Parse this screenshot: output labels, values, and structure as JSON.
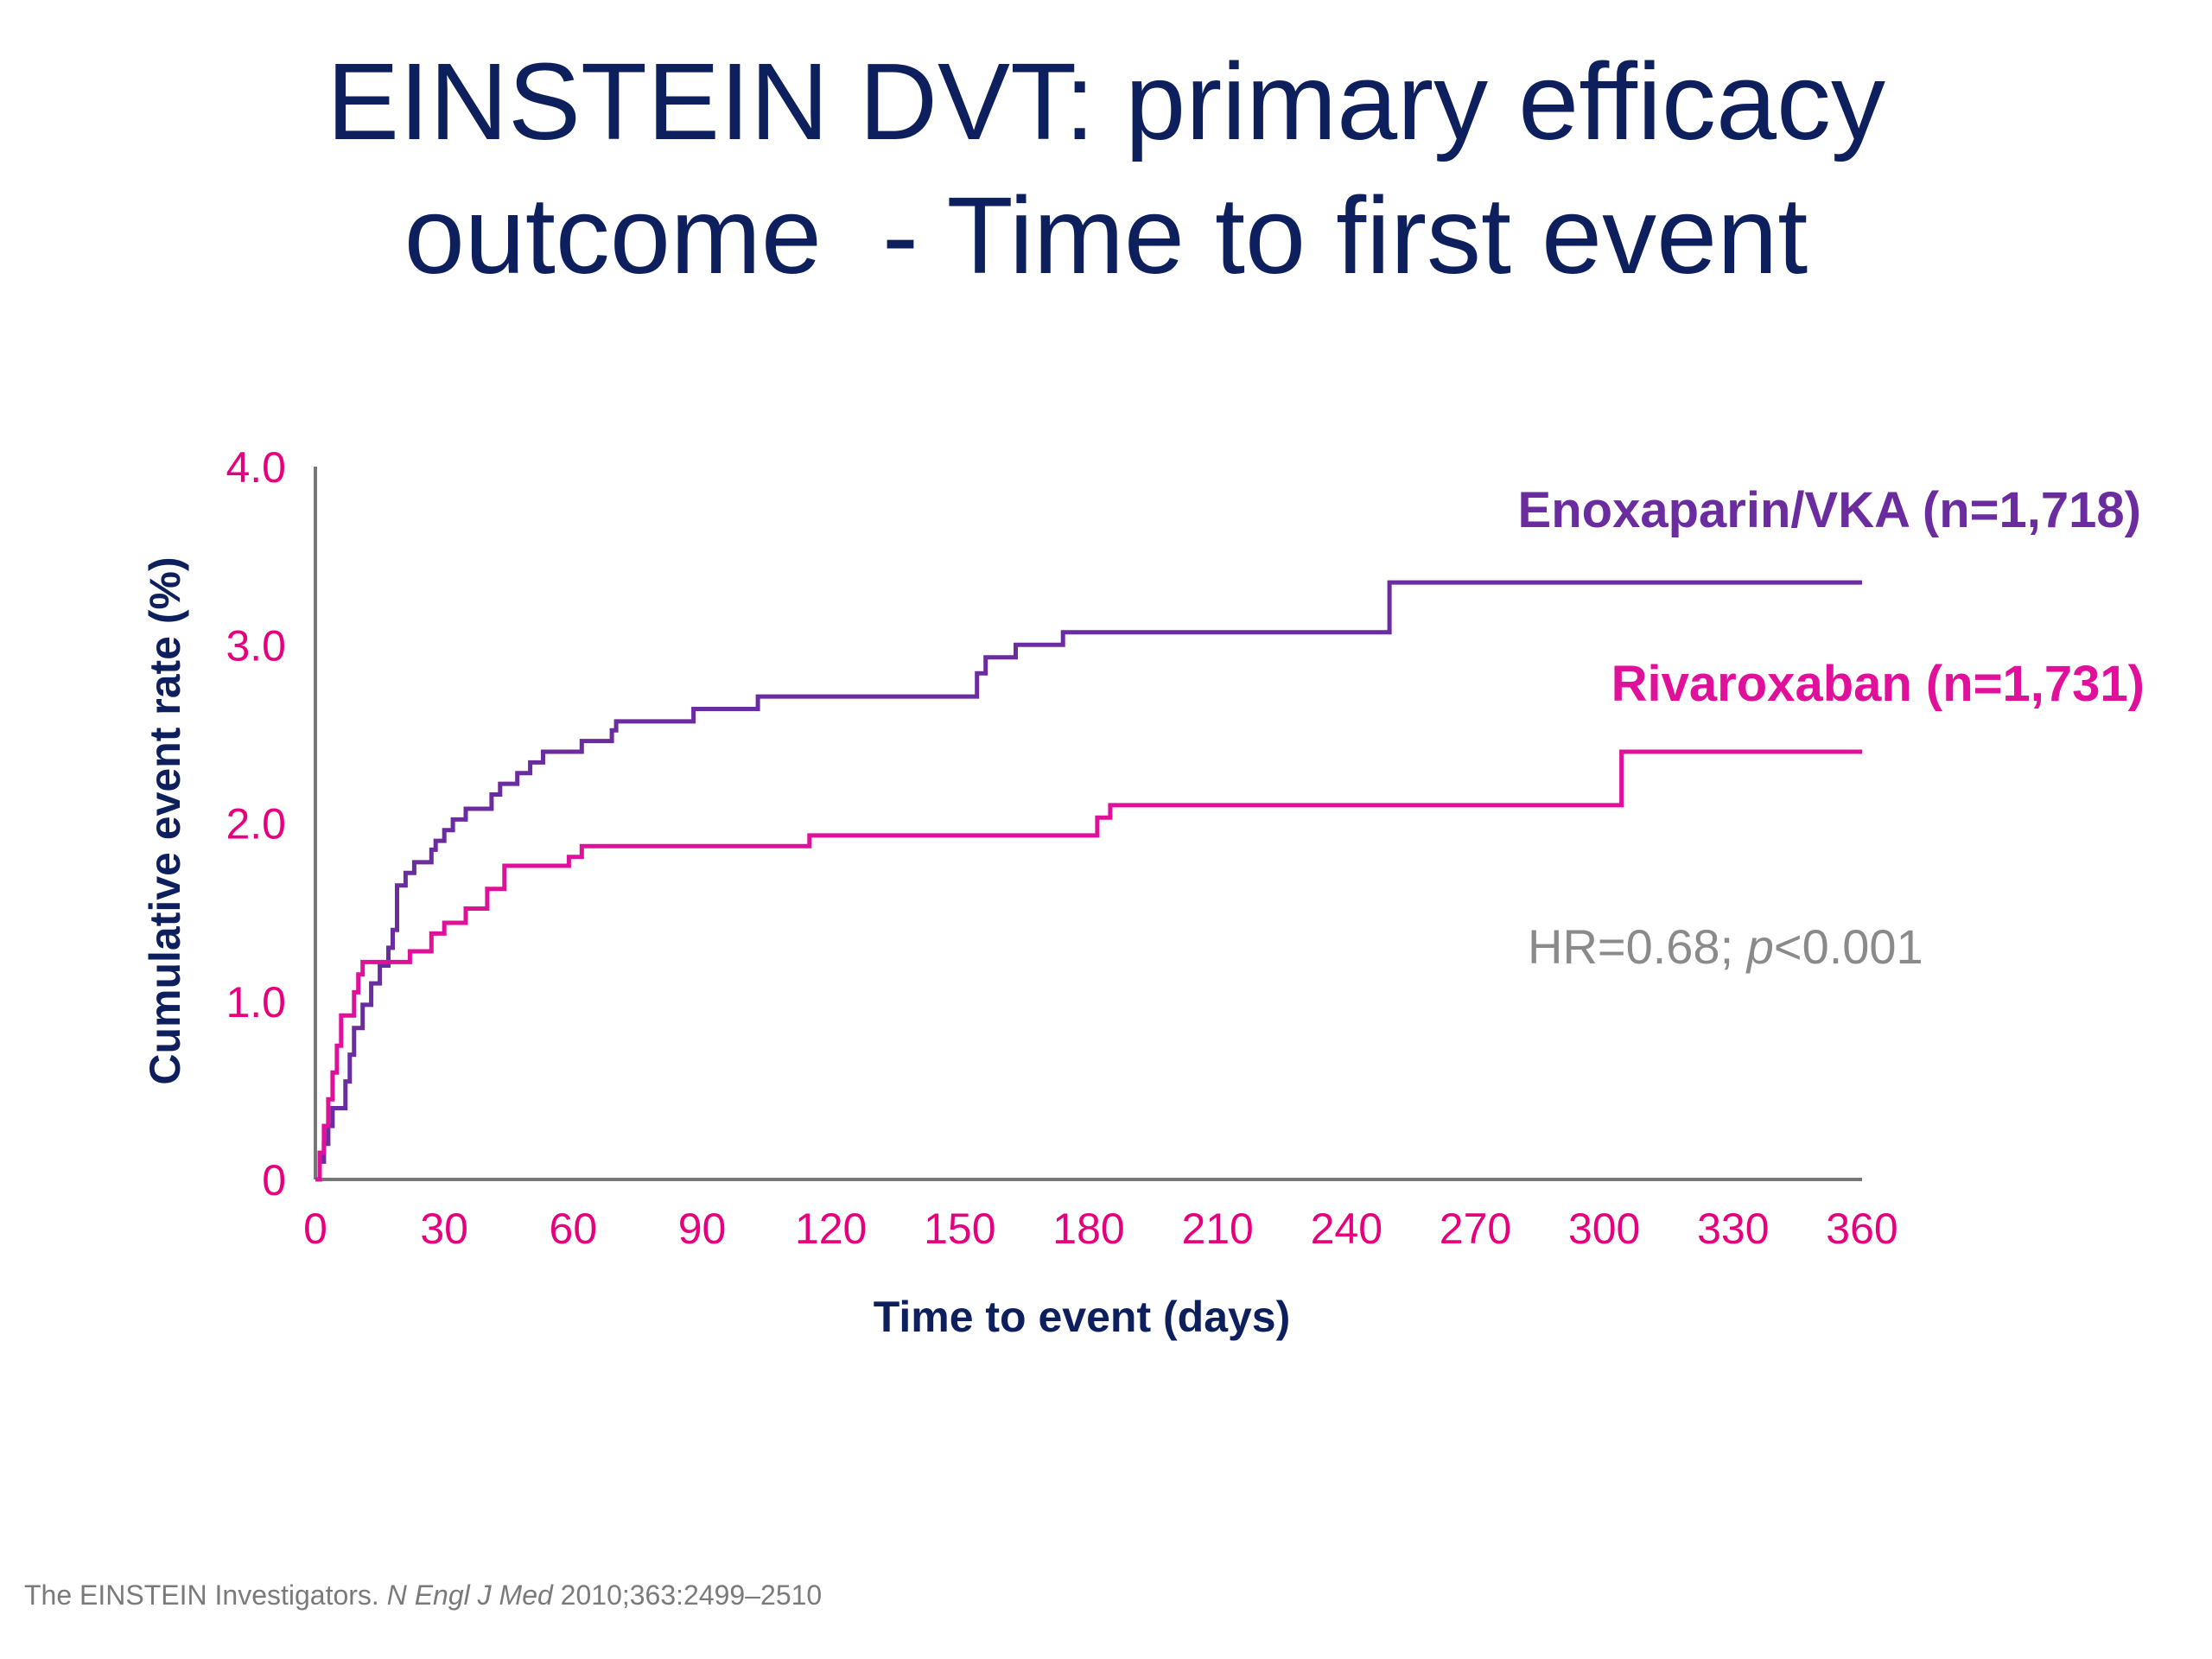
{
  "title": {
    "line1": "EINSTEIN DVT: primary efficacy",
    "line2": "outcome  - Time to first event"
  },
  "footnote": {
    "authors": "The EINSTEIN Investigators.",
    "journal": "N Engl J Med",
    "citation": "2010;363:2499–2510"
  },
  "annotation": {
    "hr_prefix": "HR=0.68; ",
    "p_symbol": "p",
    "p_suffix": "<0.001"
  },
  "colors": {
    "axis_tick_color": "#e6007e",
    "axis_title_color": "#0d1f5c",
    "axis_line_color": "#777777",
    "enoxaparin_color": "#6a2c9e",
    "rivaroxaban_color": "#e0109a",
    "annotation_color": "#8a8a8a"
  },
  "chart_data": {
    "type": "line",
    "step": true,
    "xlabel": "Time to event (days)",
    "ylabel": "Cumulative event rate (%)",
    "xlim": [
      0,
      360
    ],
    "ylim": [
      0,
      4.0
    ],
    "x_ticks": [
      0,
      30,
      60,
      90,
      120,
      150,
      180,
      210,
      240,
      270,
      300,
      330,
      360
    ],
    "x_tick_labels": [
      "0",
      "30",
      "60",
      "90",
      "120",
      "150",
      "180",
      "210",
      "240",
      "270",
      "300",
      "330",
      "360"
    ],
    "y_ticks": [
      0,
      1.0,
      2.0,
      3.0,
      4.0
    ],
    "y_tick_labels": [
      "0",
      "1.0",
      "2.0",
      "3.0",
      "4.0"
    ],
    "grid": false,
    "series": [
      {
        "name": "Enoxaparin/VKA (n=1,718)",
        "color": "#6a2c9e",
        "points": [
          [
            0,
            0
          ],
          [
            1,
            0.1
          ],
          [
            2,
            0.2
          ],
          [
            3,
            0.3
          ],
          [
            4,
            0.4
          ],
          [
            7,
            0.55
          ],
          [
            8,
            0.7
          ],
          [
            9,
            0.85
          ],
          [
            11,
            0.98
          ],
          [
            13,
            1.1
          ],
          [
            15,
            1.2
          ],
          [
            17,
            1.3
          ],
          [
            18,
            1.4
          ],
          [
            19,
            1.65
          ],
          [
            21,
            1.72
          ],
          [
            23,
            1.78
          ],
          [
            27,
            1.85
          ],
          [
            28,
            1.9
          ],
          [
            30,
            1.96
          ],
          [
            32,
            2.02
          ],
          [
            35,
            2.08
          ],
          [
            41,
            2.16
          ],
          [
            43,
            2.22
          ],
          [
            47,
            2.28
          ],
          [
            50,
            2.34
          ],
          [
            53,
            2.4
          ],
          [
            62,
            2.46
          ],
          [
            69,
            2.52
          ],
          [
            70,
            2.57
          ],
          [
            88,
            2.64
          ],
          [
            103,
            2.71
          ],
          [
            154,
            2.84
          ],
          [
            156,
            2.93
          ],
          [
            163,
            3.0
          ],
          [
            174,
            3.07
          ],
          [
            250,
            3.35
          ],
          [
            360,
            3.35
          ]
        ]
      },
      {
        "name": "Rivaroxaban (n=1,731)",
        "color": "#e0109a",
        "points": [
          [
            0,
            0
          ],
          [
            1,
            0.15
          ],
          [
            2,
            0.3
          ],
          [
            3,
            0.45
          ],
          [
            4,
            0.6
          ],
          [
            5,
            0.75
          ],
          [
            6,
            0.92
          ],
          [
            9,
            1.05
          ],
          [
            10,
            1.15
          ],
          [
            11,
            1.22
          ],
          [
            22,
            1.28
          ],
          [
            27,
            1.38
          ],
          [
            30,
            1.44
          ],
          [
            35,
            1.52
          ],
          [
            40,
            1.63
          ],
          [
            44,
            1.76
          ],
          [
            59,
            1.81
          ],
          [
            62,
            1.87
          ],
          [
            115,
            1.93
          ],
          [
            182,
            2.03
          ],
          [
            185,
            2.1
          ],
          [
            304,
            2.4
          ],
          [
            360,
            2.4
          ]
        ]
      }
    ],
    "legend": "inline-right"
  }
}
